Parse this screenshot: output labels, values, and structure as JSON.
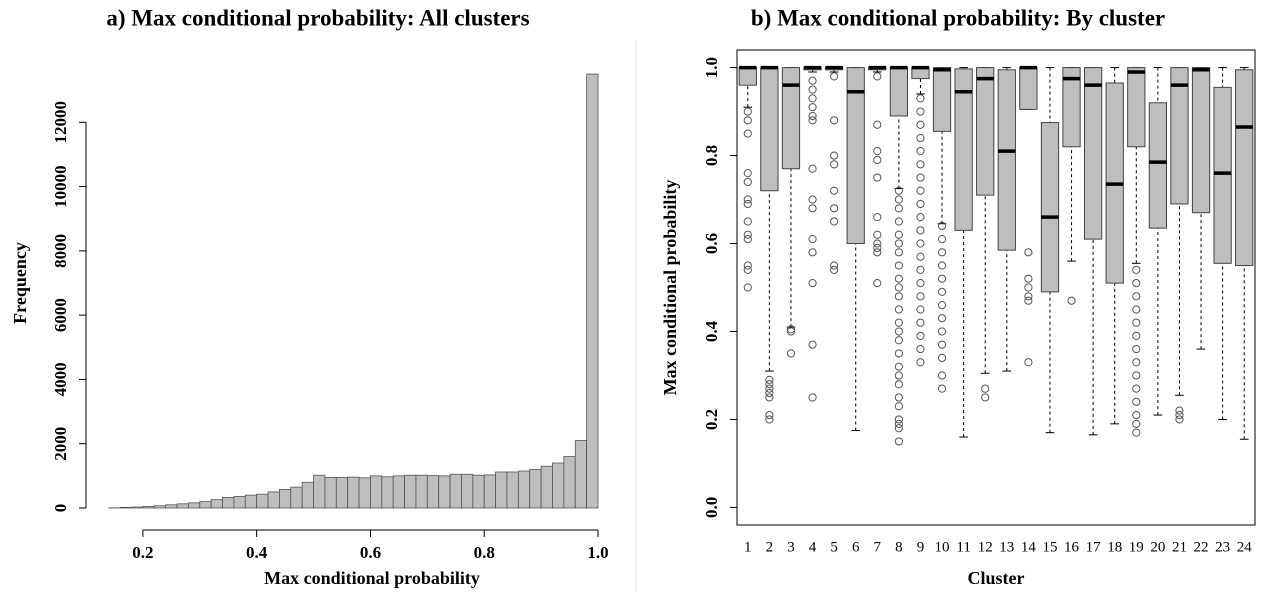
{
  "chart_data": [
    {
      "type": "histogram",
      "title": "a) Max conditional probability: All clusters",
      "x_label": "Max conditional probability",
      "y_label": "Frequency",
      "bins": [
        0.14,
        0.16,
        0.18,
        0.2,
        0.22,
        0.24,
        0.26,
        0.28,
        0.3,
        0.32,
        0.34,
        0.36,
        0.38,
        0.4,
        0.42,
        0.44,
        0.46,
        0.48,
        0.5,
        0.52,
        0.54,
        0.56,
        0.58,
        0.6,
        0.62,
        0.64,
        0.66,
        0.68,
        0.7,
        0.72,
        0.74,
        0.76,
        0.78,
        0.8,
        0.82,
        0.84,
        0.86,
        0.88,
        0.9,
        0.92,
        0.94,
        0.96,
        0.98,
        1.0
      ],
      "values": [
        5,
        20,
        30,
        50,
        70,
        100,
        130,
        160,
        200,
        260,
        330,
        360,
        400,
        430,
        500,
        580,
        650,
        800,
        1020,
        950,
        950,
        960,
        940,
        1000,
        970,
        1000,
        1020,
        1020,
        1010,
        1000,
        1050,
        1050,
        1020,
        1030,
        1120,
        1120,
        1150,
        1200,
        1300,
        1400,
        1600,
        2100,
        13500
      ],
      "color": "#bebebe",
      "xlim": [
        0.1,
        1.0
      ],
      "xticks": [
        0.2,
        0.4,
        0.6,
        0.8,
        {
          "value": 1,
          "label": "1.0"
        }
      ],
      "ylim": [
        0,
        14000
      ],
      "yticks": [
        0,
        2000,
        4000,
        6000,
        8000,
        10000,
        12000
      ]
    },
    {
      "type": "box",
      "title": "b) Max conditional probability: By cluster",
      "x_label": "Cluster",
      "y_label": "Max conditional probability",
      "categories": [
        "1",
        "2",
        "3",
        "4",
        "5",
        "6",
        "7",
        "8",
        "9",
        "10",
        "11",
        "12",
        "13",
        "14",
        "15",
        "16",
        "17",
        "18",
        "19",
        "20",
        "21",
        "22",
        "23",
        "24"
      ],
      "color": "#bebebe",
      "boxes": [
        {
          "low": 0.91,
          "q1": 0.96,
          "median": 1.0,
          "q3": 1.0,
          "high": 1.0,
          "outliers": [
            0.9,
            0.88,
            0.85,
            0.76,
            0.74,
            0.7,
            0.69,
            0.65,
            0.62,
            0.61,
            0.55,
            0.54,
            0.5
          ]
        },
        {
          "low": 0.31,
          "q1": 0.72,
          "median": 1.0,
          "q3": 1.0,
          "high": 1.0,
          "outliers": [
            0.29,
            0.28,
            0.27,
            0.26,
            0.25,
            0.21,
            0.2
          ]
        },
        {
          "low": 0.41,
          "q1": 0.77,
          "median": 0.96,
          "q3": 1.0,
          "high": 1.0,
          "outliers": [
            0.405,
            0.4,
            0.35
          ]
        },
        {
          "low": 0.99,
          "q1": 0.995,
          "median": 1.0,
          "q3": 1.0,
          "high": 1.0,
          "outliers": [
            0.97,
            0.95,
            0.93,
            0.91,
            0.89,
            0.88,
            0.77,
            0.7,
            0.68,
            0.61,
            0.58,
            0.51,
            0.37,
            0.25
          ]
        },
        {
          "low": 0.99,
          "q1": 0.995,
          "median": 1.0,
          "q3": 1.0,
          "high": 1.0,
          "outliers": [
            0.98,
            0.88,
            0.8,
            0.78,
            0.72,
            0.68,
            0.65,
            0.55,
            0.54
          ]
        },
        {
          "low": 0.175,
          "q1": 0.6,
          "median": 0.945,
          "q3": 1.0,
          "high": 1.0,
          "outliers": []
        },
        {
          "low": 0.99,
          "q1": 0.995,
          "median": 1.0,
          "q3": 1.0,
          "high": 1.0,
          "outliers": [
            0.98,
            0.87,
            0.81,
            0.79,
            0.75,
            0.66,
            0.62,
            0.6,
            0.59,
            0.58,
            0.51
          ]
        },
        {
          "low": 0.725,
          "q1": 0.89,
          "median": 1.0,
          "q3": 1.0,
          "high": 1.0,
          "outliers": [
            0.72,
            0.7,
            0.68,
            0.65,
            0.62,
            0.6,
            0.58,
            0.55,
            0.52,
            0.5,
            0.48,
            0.45,
            0.42,
            0.4,
            0.38,
            0.35,
            0.32,
            0.3,
            0.28,
            0.25,
            0.23,
            0.2,
            0.19,
            0.18,
            0.15
          ]
        },
        {
          "low": 0.94,
          "q1": 0.975,
          "median": 1.0,
          "q3": 1.0,
          "high": 1.0,
          "outliers": [
            0.93,
            0.9,
            0.87,
            0.84,
            0.81,
            0.78,
            0.75,
            0.72,
            0.69,
            0.66,
            0.63,
            0.6,
            0.57,
            0.54,
            0.51,
            0.48,
            0.45,
            0.42,
            0.39,
            0.36,
            0.33
          ]
        },
        {
          "low": 0.645,
          "q1": 0.855,
          "median": 0.995,
          "q3": 1.0,
          "high": 1.0,
          "outliers": [
            0.64,
            0.61,
            0.58,
            0.55,
            0.52,
            0.49,
            0.46,
            0.43,
            0.4,
            0.37,
            0.34,
            0.3,
            0.27
          ]
        },
        {
          "low": 0.16,
          "q1": 0.63,
          "median": 0.945,
          "q3": 0.997,
          "high": 1.0,
          "outliers": []
        },
        {
          "low": 0.305,
          "q1": 0.71,
          "median": 0.975,
          "q3": 1.0,
          "high": 1.0,
          "outliers": [
            0.27,
            0.25
          ]
        },
        {
          "low": 0.31,
          "q1": 0.585,
          "median": 0.81,
          "q3": 0.995,
          "high": 1.0,
          "outliers": []
        },
        {
          "low": 0.905,
          "q1": 0.905,
          "median": 1.0,
          "q3": 1.0,
          "high": 1.0,
          "outliers": [
            0.58,
            0.52,
            0.5,
            0.48,
            0.47,
            0.33
          ]
        },
        {
          "low": 0.17,
          "q1": 0.49,
          "median": 0.66,
          "q3": 0.875,
          "high": 1.0,
          "outliers": []
        },
        {
          "low": 0.56,
          "q1": 0.82,
          "median": 0.975,
          "q3": 1.0,
          "high": 1.0,
          "outliers": [
            0.47
          ]
        },
        {
          "low": 0.165,
          "q1": 0.61,
          "median": 0.96,
          "q3": 1.0,
          "high": 1.0,
          "outliers": []
        },
        {
          "low": 0.19,
          "q1": 0.51,
          "median": 0.735,
          "q3": 0.965,
          "high": 1.0,
          "outliers": []
        },
        {
          "low": 0.555,
          "q1": 0.82,
          "median": 0.99,
          "q3": 1.0,
          "high": 1.0,
          "outliers": [
            0.54,
            0.51,
            0.48,
            0.45,
            0.42,
            0.39,
            0.36,
            0.33,
            0.3,
            0.27,
            0.24,
            0.21,
            0.19,
            0.17
          ]
        },
        {
          "low": 0.21,
          "q1": 0.635,
          "median": 0.785,
          "q3": 0.92,
          "high": 1.0,
          "outliers": []
        },
        {
          "low": 0.255,
          "q1": 0.69,
          "median": 0.96,
          "q3": 1.0,
          "high": 1.0,
          "outliers": [
            0.22,
            0.21,
            0.2
          ]
        },
        {
          "low": 0.36,
          "q1": 0.67,
          "median": 0.995,
          "q3": 1.0,
          "high": 1.0,
          "outliers": []
        },
        {
          "low": 0.2,
          "q1": 0.555,
          "median": 0.76,
          "q3": 0.955,
          "high": 1.0,
          "outliers": []
        },
        {
          "low": 0.155,
          "q1": 0.55,
          "median": 0.865,
          "q3": 0.995,
          "high": 1.0,
          "outliers": []
        }
      ],
      "ylim": [
        -0.04,
        1.04
      ],
      "yticks": [
        {
          "value": 0,
          "label": "0.0"
        },
        0.2,
        0.4,
        0.6,
        0.8,
        {
          "value": 1,
          "label": "1.0"
        }
      ]
    }
  ]
}
